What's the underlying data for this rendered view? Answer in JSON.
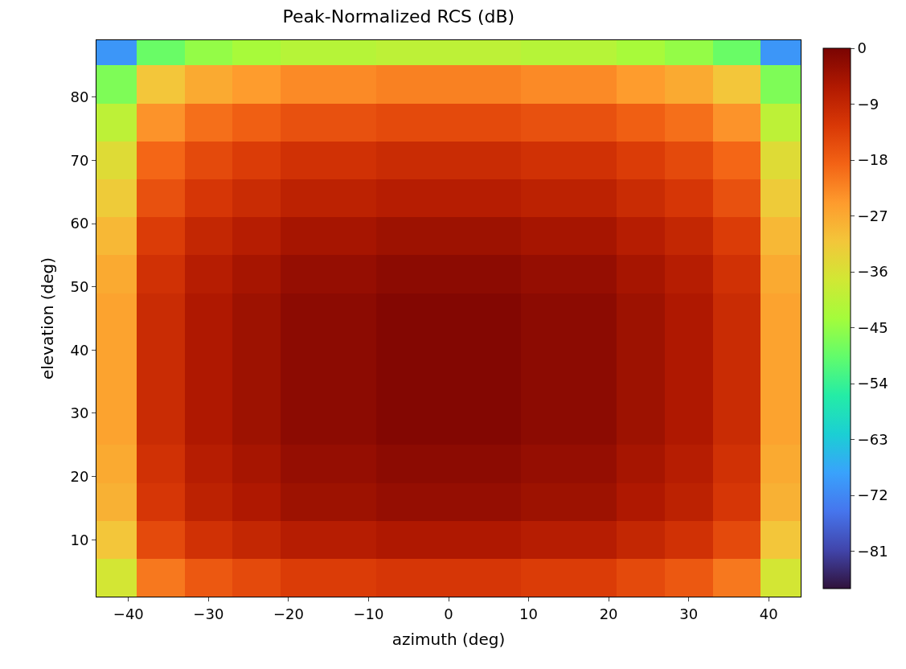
{
  "chart_data": {
    "type": "heatmap",
    "title": "Peak-Normalized RCS (dB)",
    "xlabel": "azimuth (deg)",
    "ylabel": "elevation (deg)",
    "x": [
      -42,
      -36,
      -30,
      -24,
      -18,
      -12,
      -6,
      0,
      6,
      12,
      18,
      24,
      30,
      36,
      42
    ],
    "y": [
      88,
      82,
      76,
      70,
      64,
      58,
      52,
      46,
      40,
      34,
      28,
      22,
      16,
      10,
      4
    ],
    "xlim": [
      -44,
      44
    ],
    "xticks": [
      -40,
      -30,
      -20,
      -10,
      0,
      10,
      20,
      30,
      40
    ],
    "ylim": [
      1,
      89
    ],
    "yticks": [
      10,
      20,
      30,
      40,
      50,
      60,
      70,
      80
    ],
    "clim": [
      -87,
      0
    ],
    "cticks": [
      0,
      -9,
      -18,
      -27,
      -36,
      -45,
      -54,
      -63,
      -72,
      -81
    ],
    "cells": [
      [
        -70,
        -49,
        -45,
        -43,
        -41,
        -41,
        -40,
        -40,
        -40,
        -41,
        -41,
        -43,
        -45,
        -49,
        -70
      ],
      [
        -47,
        -31,
        -27,
        -25,
        -23,
        -23,
        -22,
        -22,
        -22,
        -23,
        -23,
        -25,
        -27,
        -31,
        -47
      ],
      [
        -40,
        -24,
        -20,
        -18,
        -16,
        -16,
        -15,
        -15,
        -15,
        -16,
        -16,
        -18,
        -20,
        -24,
        -40
      ],
      [
        -35,
        -19,
        -15,
        -13,
        -11,
        -11,
        -10,
        -10,
        -10,
        -11,
        -11,
        -13,
        -15,
        -19,
        -35
      ],
      [
        -32,
        -16,
        -12,
        -10,
        -8,
        -8,
        -7,
        -7,
        -7,
        -8,
        -8,
        -10,
        -12,
        -16,
        -32
      ],
      [
        -29,
        -13,
        -9,
        -7,
        -5,
        -5,
        -4,
        -4,
        -4,
        -5,
        -5,
        -7,
        -9,
        -13,
        -29
      ],
      [
        -27,
        -11,
        -7,
        -5,
        -3,
        -3,
        -2,
        -2,
        -2,
        -3,
        -3,
        -5,
        -7,
        -11,
        -27
      ],
      [
        -26,
        -10,
        -6,
        -4,
        -2,
        -2,
        -1,
        -1,
        -1,
        -2,
        -2,
        -4,
        -6,
        -10,
        -26
      ],
      [
        -26,
        -10,
        -6,
        -4,
        -2,
        -2,
        -1,
        -1,
        -1,
        -2,
        -2,
        -4,
        -6,
        -10,
        -26
      ],
      [
        -26,
        -10,
        -6,
        -4,
        -2,
        -2,
        -1,
        -1,
        -1,
        -2,
        -2,
        -4,
        -6,
        -10,
        -26
      ],
      [
        -26,
        -10,
        -6,
        -4,
        -2,
        -2,
        -1,
        -1,
        -1,
        -2,
        -2,
        -4,
        -6,
        -10,
        -26
      ],
      [
        -27,
        -11,
        -7,
        -5,
        -3,
        -3,
        -2,
        -2,
        -2,
        -3,
        -3,
        -5,
        -7,
        -11,
        -27
      ],
      [
        -28,
        -12,
        -8,
        -6,
        -4,
        -4,
        -3,
        -3,
        -3,
        -4,
        -4,
        -6,
        -8,
        -12,
        -28
      ],
      [
        -31,
        -15,
        -11,
        -9,
        -7,
        -7,
        -6,
        -6,
        -6,
        -7,
        -7,
        -9,
        -11,
        -15,
        -31
      ],
      [
        -37,
        -21,
        -17,
        -15,
        -13,
        -13,
        -12,
        -12,
        -12,
        -13,
        -13,
        -15,
        -17,
        -21,
        -37
      ]
    ]
  }
}
